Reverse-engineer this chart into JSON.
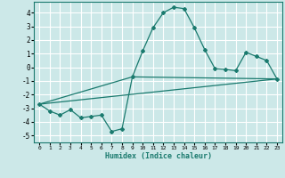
{
  "xlabel": "Humidex (Indice chaleur)",
  "ylabel": "",
  "background_color": "#cce8e8",
  "grid_color": "#ffffff",
  "line_color": "#1a7a6e",
  "xlim": [
    -0.5,
    23.5
  ],
  "ylim": [
    -5.5,
    4.8
  ],
  "yticks": [
    -5,
    -4,
    -3,
    -2,
    -1,
    0,
    1,
    2,
    3,
    4
  ],
  "xticks": [
    0,
    1,
    2,
    3,
    4,
    5,
    6,
    7,
    8,
    9,
    10,
    11,
    12,
    13,
    14,
    15,
    16,
    17,
    18,
    19,
    20,
    21,
    22,
    23
  ],
  "series1_x": [
    0,
    1,
    2,
    3,
    4,
    5,
    6,
    7,
    8,
    9,
    10,
    11,
    12,
    13,
    14,
    15,
    16,
    17,
    18,
    19,
    20,
    21,
    22,
    23
  ],
  "series1_y": [
    -2.7,
    -3.2,
    -3.5,
    -3.1,
    -3.7,
    -3.6,
    -3.5,
    -4.7,
    -4.5,
    -0.7,
    1.2,
    2.9,
    4.0,
    4.4,
    4.3,
    2.9,
    1.3,
    -0.1,
    -0.15,
    -0.25,
    1.1,
    0.8,
    0.5,
    -0.85
  ],
  "series2_x": [
    0,
    23
  ],
  "series2_y": [
    -2.7,
    -0.85
  ],
  "series3_x": [
    0,
    9,
    23
  ],
  "series3_y": [
    -2.7,
    -0.7,
    -0.85
  ]
}
